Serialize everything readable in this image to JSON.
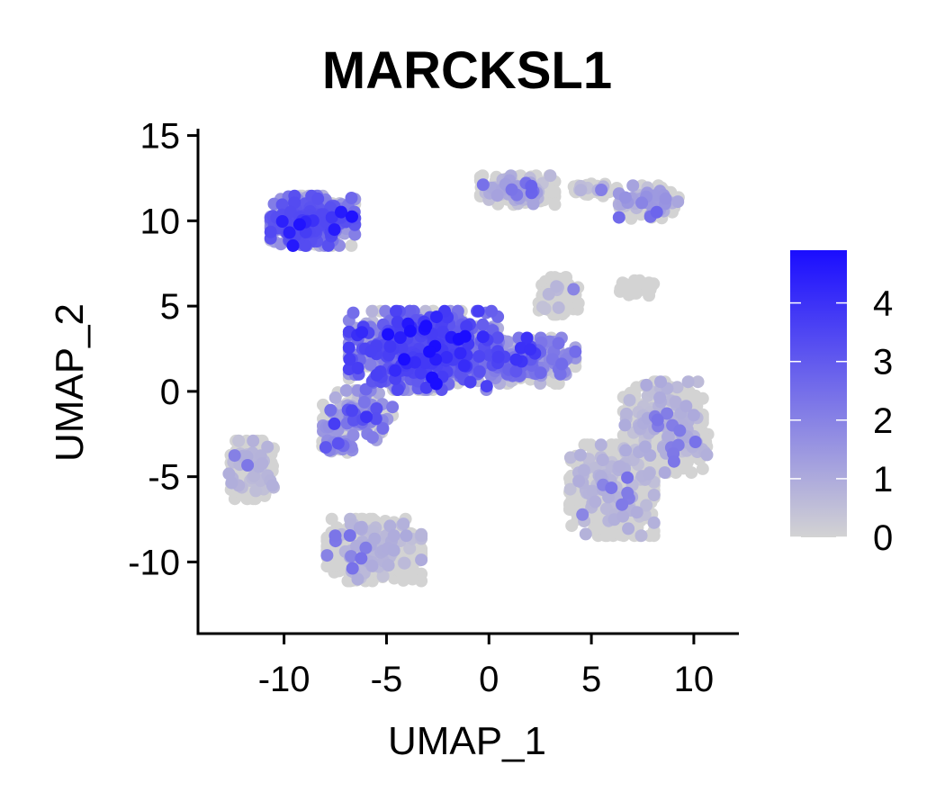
{
  "chart_data": {
    "type": "scatter",
    "title": "MARCKSL1",
    "xlabel": "UMAP_1",
    "ylabel": "UMAP_2",
    "xlim": [
      -14.2,
      12.2
    ],
    "ylim": [
      -14.2,
      15.4
    ],
    "xticks": [
      -10,
      -5,
      0,
      5,
      10
    ],
    "yticks": [
      15,
      10,
      5,
      0,
      -5,
      -10
    ],
    "xtick_labels": [
      "-10",
      "-5",
      "0",
      "5",
      "10"
    ],
    "ytick_labels": [
      "15",
      "10",
      "5",
      "0",
      "-5",
      "-10"
    ],
    "grid": false,
    "color_scale": {
      "low_color": "#d3d3d3",
      "high_color": "#1a0dff",
      "min": 0,
      "max": 4.9,
      "ticks": [
        0,
        1,
        2,
        3,
        4
      ],
      "tick_labels": [
        "0",
        "1",
        "2",
        "3",
        "4"
      ],
      "placement": "right"
    },
    "clusters": [
      {
        "center": [
          -8.6,
          10.0
        ],
        "spread": [
          1.7,
          1.2
        ],
        "count": 520,
        "mean_expression": 1.7
      },
      {
        "center": [
          -3.2,
          2.4
        ],
        "spread": [
          3.0,
          1.9
        ],
        "count": 900,
        "mean_expression": 1.9
      },
      {
        "center": [
          1.8,
          1.8
        ],
        "spread": [
          2.0,
          1.1
        ],
        "count": 320,
        "mean_expression": 1.3
      },
      {
        "center": [
          -6.4,
          -1.4
        ],
        "spread": [
          1.4,
          1.2
        ],
        "count": 140,
        "mean_expression": 1.2
      },
      {
        "center": [
          -7.4,
          -3.1
        ],
        "spread": [
          0.6,
          0.4
        ],
        "count": 60,
        "mean_expression": 0.9
      },
      {
        "center": [
          1.4,
          11.8
        ],
        "spread": [
          1.5,
          0.7
        ],
        "count": 240,
        "mean_expression": 0.5
      },
      {
        "center": [
          7.8,
          11.1
        ],
        "spread": [
          1.2,
          0.8
        ],
        "count": 150,
        "mean_expression": 0.7
      },
      {
        "center": [
          5.2,
          11.8
        ],
        "spread": [
          1.0,
          0.3
        ],
        "count": 60,
        "mean_expression": 0.3
      },
      {
        "center": [
          3.4,
          5.6
        ],
        "spread": [
          0.8,
          0.9
        ],
        "count": 150,
        "mean_expression": 0.2
      },
      {
        "center": [
          7.2,
          6.1
        ],
        "spread": [
          0.7,
          0.4
        ],
        "count": 30,
        "mean_expression": 0.0
      },
      {
        "center": [
          -11.6,
          -4.6
        ],
        "spread": [
          0.9,
          1.4
        ],
        "count": 280,
        "mean_expression": 0.3
      },
      {
        "center": [
          -5.6,
          -9.3
        ],
        "spread": [
          1.9,
          1.5
        ],
        "count": 600,
        "mean_expression": 0.35
      },
      {
        "center": [
          6.0,
          -5.8
        ],
        "spread": [
          1.7,
          2.2
        ],
        "count": 600,
        "mean_expression": 0.3
      },
      {
        "center": [
          8.5,
          -2.1
        ],
        "spread": [
          1.6,
          2.2
        ],
        "count": 520,
        "mean_expression": 0.35
      },
      {
        "center": [
          9.6,
          -3.2
        ],
        "spread": [
          0.9,
          0.8
        ],
        "count": 140,
        "mean_expression": 0.3
      }
    ]
  }
}
